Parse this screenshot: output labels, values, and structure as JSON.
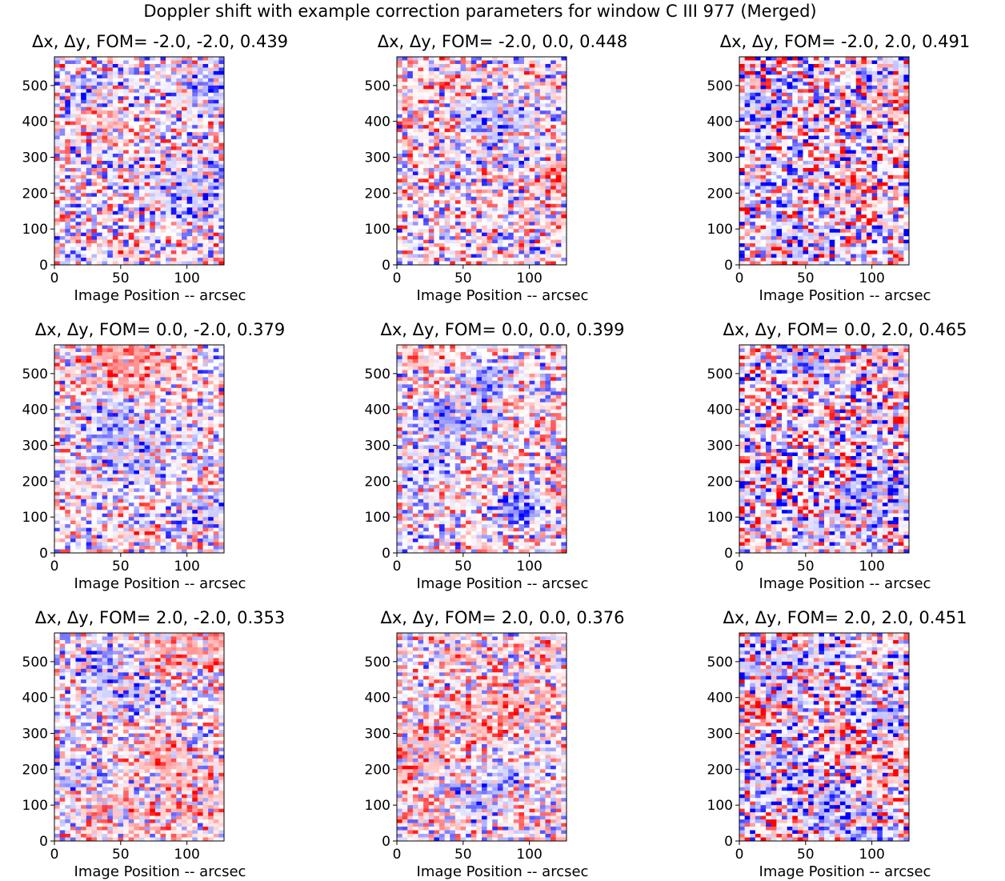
{
  "figure": {
    "suptitle": "Doppler shift with example correction parameters for window C III 977 (Merged)"
  },
  "chart_data": [
    {
      "type": "heatmap",
      "title_prefix": "Δx, Δy, FOM= ",
      "dx": "-2.0",
      "dy": "-2.0",
      "fom": "0.439",
      "title": "Δx, Δy, FOM= -2.0, -2.0, 0.439",
      "xlabel": "Image Position -- arcsec",
      "ylabel": "",
      "xlim": [
        0,
        128
      ],
      "ylim": [
        0,
        580
      ],
      "xticks": [
        0,
        50,
        100
      ],
      "yticks": [
        0,
        100,
        200,
        300,
        400,
        500
      ],
      "colormap": [
        "#0000ff",
        "#ffffff",
        "#ff0000"
      ]
    },
    {
      "type": "heatmap",
      "title_prefix": "Δx, Δy, FOM= ",
      "dx": "-2.0",
      "dy": "0.0",
      "fom": "0.448",
      "title": "Δx, Δy, FOM= -2.0, 0.0, 0.448",
      "xlabel": "Image Position -- arcsec",
      "ylabel": "",
      "xlim": [
        0,
        128
      ],
      "ylim": [
        0,
        580
      ],
      "xticks": [
        0,
        50,
        100
      ],
      "yticks": [
        0,
        100,
        200,
        300,
        400,
        500
      ],
      "colormap": [
        "#0000ff",
        "#ffffff",
        "#ff0000"
      ]
    },
    {
      "type": "heatmap",
      "title_prefix": "Δx, Δy, FOM= ",
      "dx": "-2.0",
      "dy": "2.0",
      "fom": "0.491",
      "title": "Δx, Δy, FOM= -2.0, 2.0, 0.491",
      "xlabel": "Image Position -- arcsec",
      "ylabel": "",
      "xlim": [
        0,
        128
      ],
      "ylim": [
        0,
        580
      ],
      "xticks": [
        0,
        50,
        100
      ],
      "yticks": [
        0,
        100,
        200,
        300,
        400,
        500
      ],
      "colormap": [
        "#0000ff",
        "#ffffff",
        "#ff0000"
      ]
    },
    {
      "type": "heatmap",
      "title_prefix": "Δx, Δy, FOM= ",
      "dx": "0.0",
      "dy": "-2.0",
      "fom": "0.379",
      "title": "Δx, Δy, FOM= 0.0, -2.0, 0.379",
      "xlabel": "Image Position -- arcsec",
      "ylabel": "",
      "xlim": [
        0,
        128
      ],
      "ylim": [
        0,
        580
      ],
      "xticks": [
        0,
        50,
        100
      ],
      "yticks": [
        0,
        100,
        200,
        300,
        400,
        500
      ],
      "colormap": [
        "#0000ff",
        "#ffffff",
        "#ff0000"
      ]
    },
    {
      "type": "heatmap",
      "title_prefix": "Δx, Δy, FOM= ",
      "dx": "0.0",
      "dy": "0.0",
      "fom": "0.399",
      "title": "Δx, Δy, FOM= 0.0, 0.0, 0.399",
      "xlabel": "Image Position -- arcsec",
      "ylabel": "",
      "xlim": [
        0,
        128
      ],
      "ylim": [
        0,
        580
      ],
      "xticks": [
        0,
        50,
        100
      ],
      "yticks": [
        0,
        100,
        200,
        300,
        400,
        500
      ],
      "colormap": [
        "#0000ff",
        "#ffffff",
        "#ff0000"
      ]
    },
    {
      "type": "heatmap",
      "title_prefix": "Δx, Δy, FOM= ",
      "dx": "0.0",
      "dy": "2.0",
      "fom": "0.465",
      "title": "Δx, Δy, FOM= 0.0, 2.0, 0.465",
      "xlabel": "Image Position -- arcsec",
      "ylabel": "",
      "xlim": [
        0,
        128
      ],
      "ylim": [
        0,
        580
      ],
      "xticks": [
        0,
        50,
        100
      ],
      "yticks": [
        0,
        100,
        200,
        300,
        400,
        500
      ],
      "colormap": [
        "#0000ff",
        "#ffffff",
        "#ff0000"
      ]
    },
    {
      "type": "heatmap",
      "title_prefix": "Δx, Δy, FOM= ",
      "dx": "2.0",
      "dy": "-2.0",
      "fom": "0.353",
      "title": "Δx, Δy, FOM= 2.0, -2.0, 0.353",
      "xlabel": "Image Position -- arcsec",
      "ylabel": "",
      "xlim": [
        0,
        128
      ],
      "ylim": [
        0,
        580
      ],
      "xticks": [
        0,
        50,
        100
      ],
      "yticks": [
        0,
        100,
        200,
        300,
        400,
        500
      ],
      "colormap": [
        "#0000ff",
        "#ffffff",
        "#ff0000"
      ]
    },
    {
      "type": "heatmap",
      "title_prefix": "Δx, Δy, FOM= ",
      "dx": "2.0",
      "dy": "0.0",
      "fom": "0.376",
      "title": "Δx, Δy, FOM= 2.0, 0.0, 0.376",
      "xlabel": "Image Position -- arcsec",
      "ylabel": "",
      "xlim": [
        0,
        128
      ],
      "ylim": [
        0,
        580
      ],
      "xticks": [
        0,
        50,
        100
      ],
      "yticks": [
        0,
        100,
        200,
        300,
        400,
        500
      ],
      "colormap": [
        "#0000ff",
        "#ffffff",
        "#ff0000"
      ]
    },
    {
      "type": "heatmap",
      "title_prefix": "Δx, Δy, FOM= ",
      "dx": "2.0",
      "dy": "2.0",
      "fom": "0.451",
      "title": "Δx, Δy, FOM= 2.0, 2.0, 0.451",
      "xlabel": "Image Position -- arcsec",
      "ylabel": "",
      "xlim": [
        0,
        128
      ],
      "ylim": [
        0,
        580
      ],
      "xticks": [
        0,
        50,
        100
      ],
      "yticks": [
        0,
        100,
        200,
        300,
        400,
        500
      ],
      "colormap": [
        "#0000ff",
        "#ffffff",
        "#ff0000"
      ]
    }
  ]
}
